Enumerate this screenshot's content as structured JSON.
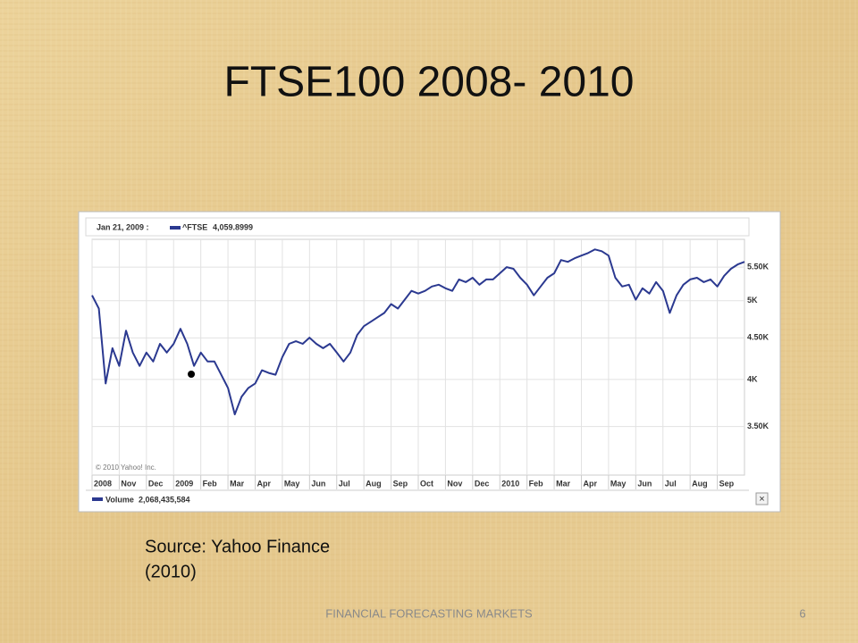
{
  "title": "FTSE100 2008- 2010",
  "source_lines": [
    "Source: Yahoo Finance",
    "(2010)"
  ],
  "footer": "FINANCIAL FORECASTING MARKETS",
  "page_number": "6",
  "controls": {
    "close": "×"
  },
  "chart_data": {
    "type": "line",
    "copyright": "© 2010 Yahoo! Inc.",
    "hover": {
      "date": "Jan 21, 2009 :",
      "x": 3.65,
      "value": 4059.8999,
      "value_label": "4,059.8999"
    },
    "volume": {
      "name": "Volume",
      "value": "2,068,435,584"
    },
    "log_scale": true,
    "grid": true,
    "x": [
      0,
      0.25,
      0.5,
      0.75,
      1,
      1.25,
      1.5,
      1.75,
      2,
      2.25,
      2.5,
      2.75,
      3,
      3.25,
      3.5,
      3.75,
      4,
      4.25,
      4.5,
      4.75,
      5,
      5.25,
      5.5,
      5.75,
      6,
      6.25,
      6.5,
      6.75,
      7,
      7.25,
      7.5,
      7.75,
      8,
      8.25,
      8.5,
      8.75,
      9,
      9.25,
      9.5,
      9.75,
      10,
      10.25,
      10.5,
      10.75,
      11,
      11.25,
      11.5,
      11.75,
      12,
      12.25,
      12.5,
      12.75,
      13,
      13.25,
      13.5,
      13.75,
      14,
      14.25,
      14.5,
      14.75,
      15,
      15.25,
      15.5,
      15.75,
      16,
      16.25,
      16.5,
      16.75,
      17,
      17.25,
      17.5,
      17.75,
      18,
      18.25,
      18.5,
      18.75,
      19,
      19.25,
      19.5,
      19.75,
      20,
      20.25,
      20.5,
      20.75,
      21,
      21.25,
      21.5,
      21.75,
      22,
      22.25,
      22.5,
      22.75,
      23,
      23.25,
      23.5,
      23.75,
      24
    ],
    "series": [
      {
        "name": "^FTSE",
        "color": "#2b3990",
        "values": [
          5077,
          4890,
          3954,
          4370,
          4157,
          4594,
          4316,
          4157,
          4316,
          4209,
          4425,
          4316,
          4425,
          4617,
          4425,
          4157,
          4316,
          4209,
          4209,
          4054,
          3905,
          3623,
          3809,
          3905,
          3954,
          4105,
          4074,
          4054,
          4262,
          4425,
          4458,
          4425,
          4503,
          4425,
          4370,
          4425,
          4316,
          4209,
          4316,
          4537,
          4652,
          4710,
          4770,
          4830,
          4952,
          4890,
          5014,
          5141,
          5102,
          5141,
          5206,
          5232,
          5180,
          5141,
          5311,
          5271,
          5337,
          5232,
          5311,
          5311,
          5405,
          5500,
          5473,
          5337,
          5232,
          5077,
          5206,
          5337,
          5405,
          5611,
          5583,
          5639,
          5682,
          5724,
          5782,
          5753,
          5682,
          5337,
          5206,
          5232,
          5014,
          5180,
          5102,
          5271,
          5141,
          4830,
          5077,
          5232,
          5311,
          5337,
          5271,
          5311,
          5206,
          5365,
          5473,
          5541,
          5583
        ]
      }
    ],
    "xlim": [
      0,
      24
    ],
    "xticks": [
      {
        "value": 0,
        "label": "2008"
      },
      {
        "value": 1,
        "label": "Nov"
      },
      {
        "value": 2,
        "label": "Dec"
      },
      {
        "value": 3,
        "label": "2009"
      },
      {
        "value": 4,
        "label": "Feb"
      },
      {
        "value": 5,
        "label": "Mar"
      },
      {
        "value": 6,
        "label": "Apr"
      },
      {
        "value": 7,
        "label": "May"
      },
      {
        "value": 8,
        "label": "Jun"
      },
      {
        "value": 9,
        "label": "Jul"
      },
      {
        "value": 10,
        "label": "Aug"
      },
      {
        "value": 11,
        "label": "Sep"
      },
      {
        "value": 12,
        "label": "Oct"
      },
      {
        "value": 13,
        "label": "Nov"
      },
      {
        "value": 14,
        "label": "Dec"
      },
      {
        "value": 15,
        "label": "2010"
      },
      {
        "value": 16,
        "label": "Feb"
      },
      {
        "value": 17,
        "label": "Mar"
      },
      {
        "value": 18,
        "label": "Apr"
      },
      {
        "value": 19,
        "label": "May"
      },
      {
        "value": 20,
        "label": "Jun"
      },
      {
        "value": 21,
        "label": "Jul"
      },
      {
        "value": 22,
        "label": "Aug"
      },
      {
        "value": 23,
        "label": "Sep"
      }
    ],
    "ylim": [
      3050,
      5950
    ],
    "yticks": [
      {
        "value": 3500,
        "label": "3.50K"
      },
      {
        "value": 4000,
        "label": "4K"
      },
      {
        "value": 4500,
        "label": "4.50K"
      },
      {
        "value": 5000,
        "label": "5K"
      },
      {
        "value": 5500,
        "label": "5.50K"
      }
    ]
  }
}
